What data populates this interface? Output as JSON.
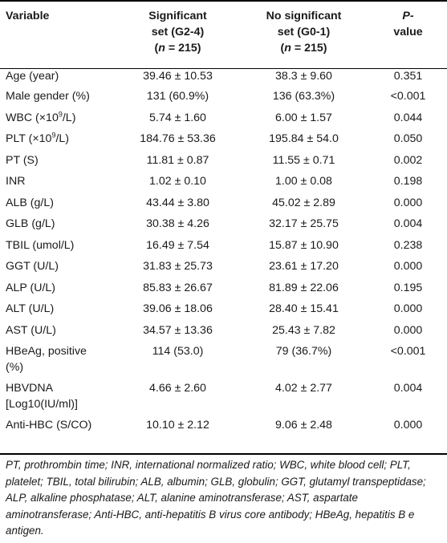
{
  "header": {
    "variable": "Variable",
    "sig_line1": "Significant",
    "sig_line2": "set (G2-4)",
    "sig_n_open": "(",
    "sig_n_var": "n",
    "sig_n_close": " = 215)",
    "nosig_line1": "No significant",
    "nosig_line2": "set (G0-1)",
    "nosig_n_open": "(",
    "nosig_n_var": "n",
    "nosig_n_close": " = 215)",
    "p_line1": "P-",
    "p_line2": "value"
  },
  "rows": [
    {
      "variable": "Age (year)",
      "sig": "39.46 ± 10.53",
      "nosig": "38.3 ± 9.60",
      "p": "0.351"
    },
    {
      "variable": "Male gender (%)",
      "sig": "131 (60.9%)",
      "nosig": "136 (63.3%)",
      "p": "<0.001"
    },
    {
      "variable_pre": "WBC (×10",
      "variable_sup": "9",
      "variable_post": "/L)",
      "sig": "5.74 ± 1.60",
      "nosig": "6.00 ± 1.57",
      "p": "0.044"
    },
    {
      "variable_pre": "PLT (×10",
      "variable_sup": "9",
      "variable_post": "/L)",
      "sig": "184.76 ± 53.36",
      "nosig": "195.84 ± 54.0",
      "p": "0.050"
    },
    {
      "variable": "PT (S)",
      "sig": "11.81 ± 0.87",
      "nosig": "11.55 ± 0.71",
      "p": "0.002"
    },
    {
      "variable": "INR",
      "sig": "1.02 ± 0.10",
      "nosig": "1.00 ± 0.08",
      "p": "0.198"
    },
    {
      "variable": "ALB (g/L)",
      "sig": "43.44 ± 3.80",
      "nosig": "45.02 ± 2.89",
      "p": "0.000"
    },
    {
      "variable": "GLB (g/L)",
      "sig": "30.38 ± 4.26",
      "nosig": "32.17 ± 25.75",
      "p": "0.004"
    },
    {
      "variable": "TBIL (umol/L)",
      "sig": "16.49 ± 7.54",
      "nosig": "15.87 ± 10.90",
      "p": "0.238"
    },
    {
      "variable": "GGT (U/L)",
      "sig": "31.83 ± 25.73",
      "nosig": "23.61 ± 17.20",
      "p": "0.000"
    },
    {
      "variable": "ALP (U/L)",
      "sig": "85.83 ± 26.67",
      "nosig": "81.89 ± 22.06",
      "p": "0.195"
    },
    {
      "variable": "ALT (U/L)",
      "sig": "39.06 ± 18.06",
      "nosig": "28.40 ± 15.41",
      "p": "0.000"
    },
    {
      "variable": "AST (U/L)",
      "sig": "34.57 ± 13.36",
      "nosig": "25.43 ± 7.82",
      "p": "0.000"
    },
    {
      "variable_l1": "HBeAg, positive",
      "variable_l2": "(%)",
      "sig": "114 (53.0)",
      "nosig": "79 (36.7%)",
      "p": "<0.001"
    },
    {
      "variable_l1": "HBVDNA",
      "variable_l2": "[Log10(IU/ml)]",
      "sig": "4.66 ± 2.60",
      "nosig": "4.02 ± 2.77",
      "p": "0.004"
    },
    {
      "variable": "Anti-HBC (S/CO)",
      "sig": "10.10 ± 2.12",
      "nosig": "9.06 ± 2.48",
      "p": "0.000"
    }
  ],
  "footnote": "PT, prothrombin time; INR, international normalized ratio; WBC, white blood cell; PLT, platelet; TBIL, total bilirubin; ALB, albumin; GLB, globulin; GGT, glutamyl transpeptidase; ALP, alkaline phosphatase; ALT, alanine aminotransferase; AST, aspartate aminotransferase; Anti-HBC, anti-hepatitis B virus core antibody; HBeAg, hepatitis B e antigen."
}
